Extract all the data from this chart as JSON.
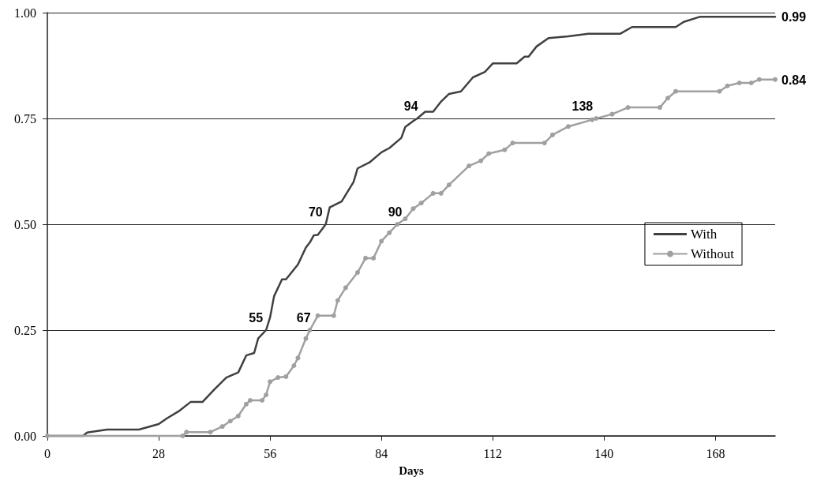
{
  "chart_data": {
    "type": "line",
    "xlabel": "Days",
    "xlim": [
      0,
      183
    ],
    "xticks": [
      0,
      28,
      56,
      84,
      112,
      140,
      168
    ],
    "ylim": [
      0,
      1
    ],
    "yticks": [
      {
        "value": 0,
        "label": "0.00"
      },
      {
        "value": 0.25,
        "label": "0.25"
      },
      {
        "value": 0.5,
        "label": "0.50"
      },
      {
        "value": 0.75,
        "label": "0.75"
      },
      {
        "value": 1,
        "label": "1.00"
      }
    ],
    "grid": "y",
    "legend": "right",
    "line_style": "solid",
    "series": [
      {
        "name": "With",
        "color": "#404040",
        "marker": "none",
        "x": [
          0,
          9,
          10,
          15,
          23,
          25,
          28,
          30,
          33,
          36,
          39,
          42,
          45,
          48,
          50,
          52,
          53,
          55,
          56,
          57,
          59,
          60,
          63,
          65,
          66,
          67,
          68,
          70,
          71,
          74,
          77,
          78,
          81,
          84,
          86,
          89,
          90,
          92,
          93,
          95,
          97,
          99,
          101,
          104,
          107,
          110,
          112,
          118,
          120,
          121,
          123,
          126,
          131,
          136,
          144,
          147,
          158,
          160,
          164,
          183
        ],
        "values": [
          0,
          0,
          0.008,
          0.015,
          0.015,
          0.02,
          0.028,
          0.041,
          0.058,
          0.08,
          0.08,
          0.11,
          0.138,
          0.15,
          0.19,
          0.196,
          0.23,
          0.25,
          0.28,
          0.33,
          0.37,
          0.37,
          0.405,
          0.445,
          0.457,
          0.474,
          0.475,
          0.5,
          0.54,
          0.554,
          0.6,
          0.632,
          0.646,
          0.67,
          0.68,
          0.704,
          0.73,
          0.744,
          0.75,
          0.766,
          0.766,
          0.79,
          0.808,
          0.814,
          0.847,
          0.86,
          0.88,
          0.88,
          0.896,
          0.896,
          0.92,
          0.94,
          0.944,
          0.95,
          0.95,
          0.966,
          0.966,
          0.978,
          0.99,
          0.99
        ]
      },
      {
        "name": "Without",
        "color": "#a0a0a0",
        "marker": "circle",
        "x": [
          0,
          34,
          35,
          41,
          44,
          46,
          48,
          50,
          51,
          54,
          55,
          56,
          58,
          60,
          62,
          63,
          65,
          66,
          68,
          72,
          73,
          75,
          78,
          80,
          82,
          84,
          86,
          88,
          90,
          92,
          94,
          97,
          99,
          101,
          106,
          109,
          111,
          115,
          117,
          125,
          127,
          131,
          137,
          138,
          142,
          146,
          154,
          156,
          158,
          169,
          171,
          174,
          177,
          179,
          183
        ],
        "values": [
          0,
          0,
          0.009,
          0.009,
          0.022,
          0.035,
          0.047,
          0.075,
          0.084,
          0.084,
          0.097,
          0.128,
          0.138,
          0.14,
          0.166,
          0.184,
          0.23,
          0.25,
          0.284,
          0.284,
          0.32,
          0.35,
          0.386,
          0.42,
          0.42,
          0.46,
          0.48,
          0.5,
          0.513,
          0.537,
          0.55,
          0.573,
          0.573,
          0.593,
          0.638,
          0.65,
          0.667,
          0.676,
          0.692,
          0.692,
          0.711,
          0.731,
          0.747,
          0.75,
          0.76,
          0.776,
          0.776,
          0.798,
          0.814,
          0.814,
          0.827,
          0.834,
          0.834,
          0.842,
          0.842
        ]
      }
    ],
    "annotations": [
      {
        "text": "55",
        "x": 55,
        "y": 0.25
      },
      {
        "text": "67",
        "x": 67,
        "y": 0.25
      },
      {
        "text": "70",
        "x": 70,
        "y": 0.5
      },
      {
        "text": "90",
        "x": 90,
        "y": 0.5
      },
      {
        "text": "94",
        "x": 94,
        "y": 0.75
      },
      {
        "text": "138",
        "x": 138,
        "y": 0.75
      },
      {
        "text": "0.99",
        "x": 183,
        "y": 0.99
      },
      {
        "text": "0.84",
        "x": 183,
        "y": 0.84
      }
    ]
  }
}
